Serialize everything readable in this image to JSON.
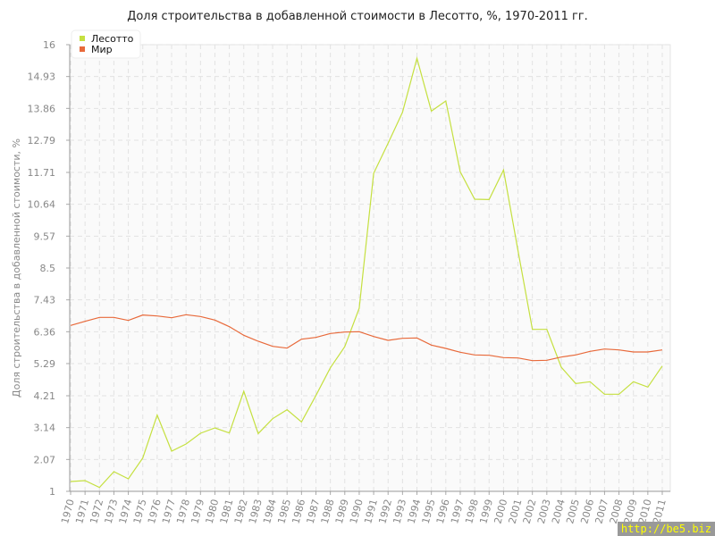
{
  "chart_data": {
    "type": "line",
    "title": "Доля строительства в добавленной стоимости в Лесотто, %, 1970-2011 гг.",
    "ylabel": "Доля строительства в добавленной стоимости, %",
    "xlabel": "",
    "ylim": [
      1,
      16
    ],
    "yticks": [
      "1",
      "2.07",
      "3.14",
      "4.21",
      "5.29",
      "6.36",
      "7.43",
      "8.5",
      "9.57",
      "10.64",
      "11.71",
      "12.79",
      "13.86",
      "14.93",
      "16"
    ],
    "grid": true,
    "legend": "top-left",
    "x": [
      1970,
      1971,
      1972,
      1973,
      1974,
      1975,
      1976,
      1977,
      1978,
      1979,
      1980,
      1981,
      1982,
      1983,
      1984,
      1985,
      1986,
      1987,
      1988,
      1989,
      1990,
      1991,
      1992,
      1993,
      1994,
      1995,
      1996,
      1997,
      1998,
      1999,
      2000,
      2001,
      2002,
      2003,
      2004,
      2005,
      2006,
      2007,
      2008,
      2009,
      2010,
      2011
    ],
    "series": [
      {
        "name": "Лесотто",
        "color": "#c5e040",
        "values": [
          1.33,
          1.36,
          1.13,
          1.66,
          1.42,
          2.12,
          3.56,
          2.35,
          2.59,
          2.95,
          3.13,
          2.96,
          4.36,
          2.94,
          3.44,
          3.74,
          3.33,
          4.22,
          5.15,
          5.86,
          7.15,
          11.68,
          12.69,
          13.73,
          15.54,
          13.77,
          14.11,
          11.73,
          10.81,
          10.8,
          11.79,
          9.09,
          6.44,
          6.44,
          5.17,
          4.62,
          4.68,
          4.26,
          4.26,
          4.68,
          4.5,
          5.21
        ]
      },
      {
        "name": "Мир",
        "color": "#e8693a",
        "values": [
          6.57,
          6.71,
          6.84,
          6.84,
          6.74,
          6.92,
          6.89,
          6.83,
          6.93,
          6.87,
          6.75,
          6.53,
          6.24,
          6.04,
          5.87,
          5.81,
          6.11,
          6.17,
          6.3,
          6.35,
          6.36,
          6.2,
          6.07,
          6.14,
          6.15,
          5.91,
          5.8,
          5.67,
          5.58,
          5.57,
          5.49,
          5.48,
          5.39,
          5.4,
          5.51,
          5.58,
          5.7,
          5.78,
          5.75,
          5.68,
          5.68,
          5.75
        ]
      }
    ]
  },
  "watermark": "http://be5.biz"
}
